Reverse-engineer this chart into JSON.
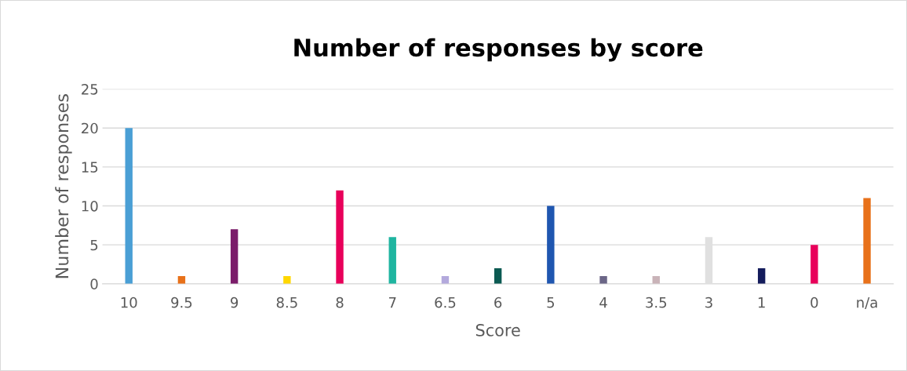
{
  "chart_data": {
    "type": "bar",
    "title": "Number of responses by score",
    "xlabel": "Score",
    "ylabel": "Number of responses",
    "categories": [
      "10",
      "9.5",
      "9",
      "8.5",
      "8",
      "7",
      "6.5",
      "6",
      "5",
      "4",
      "3.5",
      "3",
      "1",
      "0",
      "n/a"
    ],
    "values": [
      20,
      1,
      7,
      1,
      12,
      6,
      1,
      2,
      10,
      1,
      1,
      6,
      2,
      5,
      11
    ],
    "colors": [
      "#4a9fd5",
      "#e8711a",
      "#7b1c6a",
      "#ffd700",
      "#e8005a",
      "#1fb5a0",
      "#b3a9dc",
      "#0b5a52",
      "#1f56b0",
      "#6b6687",
      "#c9b3b8",
      "#e0e0e0",
      "#141c5c",
      "#e8005a",
      "#e8711a"
    ],
    "ylim": [
      0,
      25
    ],
    "yticks": [
      0,
      5,
      10,
      15,
      20,
      25
    ],
    "grid": "y",
    "legend": false
  }
}
